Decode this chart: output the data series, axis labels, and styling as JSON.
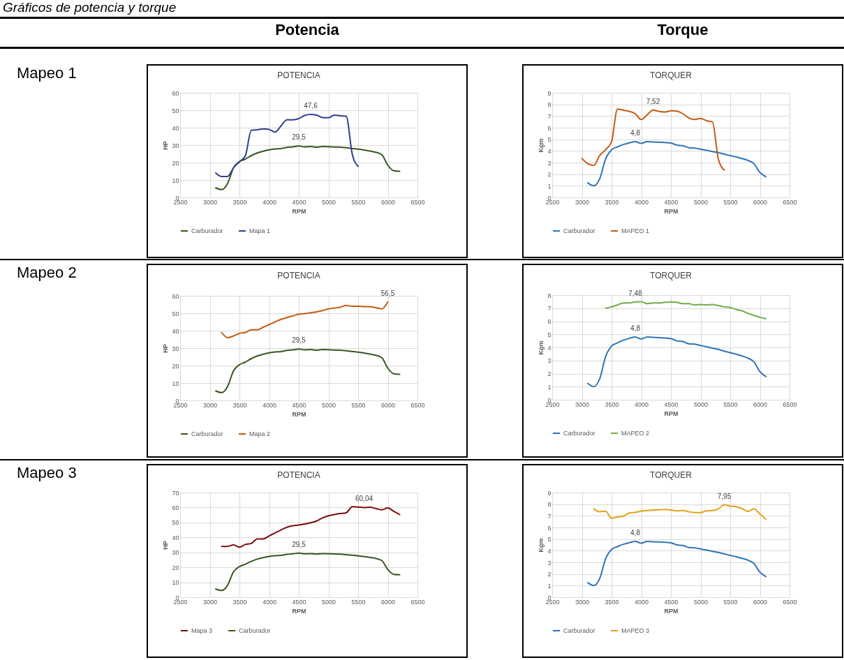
{
  "chart_data": [
    {
      "type": "line",
      "title": "POTENCIA",
      "xlabel": "RPM",
      "ylabel": "HP",
      "xlim": [
        2500,
        6500
      ],
      "xticks": [
        2500,
        3000,
        3500,
        4000,
        4500,
        5000,
        5500,
        6000,
        6500
      ],
      "ylim": [
        0,
        60
      ],
      "yticks": [
        0,
        10,
        20,
        30,
        40,
        50,
        60
      ],
      "grid": true,
      "legend": "bottom",
      "annotations": [
        "Gráficos de potencia y torque",
        "Potencia",
        "Mapeo 1",
        {
          "text": "47,6",
          "x": 4700,
          "y": 47.6
        },
        {
          "text": "29,5",
          "x": 4500,
          "y": 29.5
        }
      ],
      "series": [
        {
          "name": "Carburador",
          "color": "#375623",
          "x": [
            3100,
            3200,
            3300,
            3400,
            3500,
            3600,
            3700,
            3800,
            3900,
            4000,
            4100,
            4200,
            4300,
            4400,
            4500,
            4600,
            4700,
            4800,
            4900,
            5000,
            5100,
            5200,
            5300,
            5400,
            5500,
            5600,
            5700,
            5800,
            5900,
            6000,
            6100,
            6200
          ],
          "values": [
            5.5,
            4.5,
            8,
            17,
            20.5,
            22,
            24,
            25.5,
            26.5,
            27.3,
            27.8,
            28,
            28.7,
            29,
            29.5,
            29,
            29.2,
            28.8,
            29.2,
            29.1,
            28.9,
            28.8,
            28.5,
            28.1,
            27.7,
            27.2,
            26.6,
            25.9,
            24.5,
            18.5,
            15.3,
            15
          ]
        },
        {
          "name": "Mapa 1",
          "color": "#2f3f8f",
          "x": [
            3100,
            3200,
            3300,
            3400,
            3500,
            3600,
            3700,
            3800,
            3900,
            4000,
            4100,
            4200,
            4300,
            4400,
            4500,
            4600,
            4700,
            4800,
            4900,
            5000,
            5100,
            5200,
            5300,
            5400,
            5500
          ],
          "values": [
            14,
            12,
            12,
            17,
            20.5,
            24,
            38.5,
            38.8,
            39.3,
            39,
            37.5,
            41,
            44.5,
            44.5,
            45.2,
            47,
            47.6,
            47.2,
            45.8,
            45.7,
            47.2,
            46.8,
            46.5,
            25,
            17.8
          ]
        }
      ]
    },
    {
      "type": "line",
      "title": "TORQUER",
      "xlabel": "RPM",
      "ylabel": "Kgm",
      "xlim": [
        2500,
        6500
      ],
      "xticks": [
        2500,
        3000,
        3500,
        4000,
        4500,
        5000,
        5500,
        6000,
        6500
      ],
      "ylim": [
        0,
        9
      ],
      "yticks": [
        0,
        1,
        2,
        3,
        4,
        5,
        6,
        7,
        8,
        9
      ],
      "grid": true,
      "legend": "bottom",
      "annotations": [
        "Torque",
        {
          "text": "7,52",
          "x": 4200,
          "y": 7.52
        },
        {
          "text": "4,8",
          "x": 3900,
          "y": 4.8
        }
      ],
      "series": [
        {
          "name": "Carburador",
          "color": "#2e75b6",
          "x": [
            3100,
            3200,
            3300,
            3400,
            3500,
            3600,
            3700,
            3800,
            3900,
            4000,
            4100,
            4200,
            4300,
            4400,
            4500,
            4600,
            4700,
            4800,
            4900,
            5000,
            5100,
            5200,
            5300,
            5400,
            5500,
            5600,
            5700,
            5800,
            5900,
            6000,
            6100
          ],
          "values": [
            1.25,
            1.0,
            1.6,
            3.3,
            4.1,
            4.35,
            4.55,
            4.7,
            4.8,
            4.65,
            4.8,
            4.77,
            4.75,
            4.72,
            4.68,
            4.5,
            4.45,
            4.28,
            4.25,
            4.15,
            4.05,
            3.95,
            3.85,
            3.72,
            3.6,
            3.48,
            3.35,
            3.18,
            2.9,
            2.15,
            1.78
          ]
        },
        {
          "name": "MAPEO 1",
          "color": "#c55a11",
          "x": [
            3000,
            3100,
            3200,
            3300,
            3400,
            3500,
            3600,
            3700,
            3800,
            3900,
            4000,
            4100,
            4200,
            4300,
            4400,
            4500,
            4600,
            4700,
            4800,
            4900,
            5000,
            5100,
            5200,
            5300,
            5400
          ],
          "values": [
            3.35,
            2.9,
            2.75,
            3.6,
            4.1,
            4.8,
            7.6,
            7.5,
            7.4,
            7.2,
            6.7,
            7.1,
            7.52,
            7.4,
            7.35,
            7.45,
            7.42,
            7.2,
            6.85,
            6.7,
            6.8,
            6.6,
            6.5,
            3.3,
            2.35
          ]
        }
      ]
    },
    {
      "type": "line",
      "title": "POTENCIA",
      "xlabel": "RPM",
      "ylabel": "HP",
      "xlim": [
        2500,
        6500
      ],
      "xticks": [
        2500,
        3000,
        3500,
        4000,
        4500,
        5000,
        5500,
        6000,
        6500
      ],
      "ylim": [
        0,
        60
      ],
      "yticks": [
        0,
        10,
        20,
        30,
        40,
        50,
        60
      ],
      "grid": true,
      "legend": "bottom",
      "annotations": [
        "Mapeo 2",
        {
          "text": "56,5",
          "x": 6000,
          "y": 56.5
        },
        {
          "text": "29,5",
          "x": 4500,
          "y": 29.5
        }
      ],
      "series": [
        {
          "name": "Carburador",
          "color": "#375623",
          "x": [
            3100,
            3200,
            3300,
            3400,
            3500,
            3600,
            3700,
            3800,
            3900,
            4000,
            4100,
            4200,
            4300,
            4400,
            4500,
            4600,
            4700,
            4800,
            4900,
            5000,
            5100,
            5200,
            5300,
            5400,
            5500,
            5600,
            5700,
            5800,
            5900,
            6000,
            6100,
            6200
          ],
          "values": [
            5.5,
            4.5,
            8,
            17,
            20.5,
            22,
            24,
            25.5,
            26.5,
            27.3,
            27.8,
            28,
            28.7,
            29,
            29.5,
            29,
            29.2,
            28.8,
            29.2,
            29.1,
            28.9,
            28.8,
            28.5,
            28.1,
            27.7,
            27.2,
            26.6,
            25.9,
            24.5,
            18.5,
            15.3,
            15
          ]
        },
        {
          "name": "Mapa 2",
          "color": "#c55a11",
          "x": [
            3200,
            3300,
            3400,
            3500,
            3600,
            3700,
            3800,
            3900,
            4000,
            4100,
            4200,
            4300,
            4400,
            4500,
            4600,
            4700,
            4800,
            4900,
            5000,
            5100,
            5200,
            5300,
            5400,
            5500,
            5600,
            5700,
            5800,
            5900,
            6000
          ],
          "values": [
            39,
            36,
            37,
            38.5,
            39,
            40.5,
            40.5,
            42,
            43.5,
            45,
            46.5,
            47.5,
            48.5,
            49.5,
            49.8,
            50.3,
            50.8,
            51.5,
            52.5,
            53,
            53.5,
            54.5,
            54,
            54,
            53.8,
            53.7,
            53.2,
            52.5,
            56.5
          ]
        }
      ]
    },
    {
      "type": "line",
      "title": "TORQUER",
      "xlabel": "RPM",
      "ylabel": "Kgm",
      "xlim": [
        2500,
        6500
      ],
      "xticks": [
        2500,
        3000,
        3500,
        4000,
        4500,
        5000,
        5500,
        6000,
        6500
      ],
      "ylim": [
        0,
        8
      ],
      "yticks": [
        0,
        1,
        2,
        3,
        4,
        5,
        6,
        7,
        8
      ],
      "grid": true,
      "legend": "bottom",
      "annotations": [
        {
          "text": "7,48",
          "x": 3900,
          "y": 7.48
        },
        {
          "text": "4,8",
          "x": 3900,
          "y": 4.8
        }
      ],
      "series": [
        {
          "name": "Carburador",
          "color": "#2e75b6",
          "x": [
            3100,
            3200,
            3300,
            3400,
            3500,
            3600,
            3700,
            3800,
            3900,
            4000,
            4100,
            4200,
            4300,
            4400,
            4500,
            4600,
            4700,
            4800,
            4900,
            5000,
            5100,
            5200,
            5300,
            5400,
            5500,
            5600,
            5700,
            5800,
            5900,
            6000,
            6100
          ],
          "values": [
            1.25,
            1.0,
            1.6,
            3.3,
            4.1,
            4.35,
            4.55,
            4.7,
            4.8,
            4.65,
            4.8,
            4.77,
            4.75,
            4.72,
            4.68,
            4.5,
            4.45,
            4.28,
            4.25,
            4.15,
            4.05,
            3.95,
            3.85,
            3.72,
            3.6,
            3.48,
            3.35,
            3.18,
            2.9,
            2.15,
            1.78
          ]
        },
        {
          "name": "MAPEO 2",
          "color": "#70ad47",
          "x": [
            3400,
            3500,
            3600,
            3700,
            3800,
            3900,
            4000,
            4100,
            4200,
            4300,
            4400,
            4500,
            4600,
            4700,
            4800,
            4900,
            5000,
            5100,
            5200,
            5300,
            5400,
            5500,
            5600,
            5700,
            5800,
            5900,
            6000,
            6100
          ],
          "values": [
            7.0,
            7.1,
            7.25,
            7.4,
            7.4,
            7.48,
            7.5,
            7.35,
            7.4,
            7.4,
            7.45,
            7.48,
            7.45,
            7.35,
            7.35,
            7.25,
            7.28,
            7.25,
            7.28,
            7.2,
            7.1,
            7.05,
            6.9,
            6.8,
            6.6,
            6.45,
            6.3,
            6.2
          ]
        }
      ]
    },
    {
      "type": "line",
      "title": "POTENCIA",
      "xlabel": "RPM",
      "ylabel": "HP",
      "xlim": [
        2500,
        6500
      ],
      "xticks": [
        2500,
        3000,
        3500,
        4000,
        4500,
        5000,
        5500,
        6000,
        6500
      ],
      "ylim": [
        0,
        70
      ],
      "yticks": [
        0,
        10,
        20,
        30,
        40,
        50,
        60,
        70
      ],
      "grid": true,
      "legend": "bottom",
      "annotations": [
        "Mapeo 3",
        {
          "text": "60,04",
          "x": 5600,
          "y": 60.04
        },
        {
          "text": "29,5",
          "x": 4500,
          "y": 29.5
        }
      ],
      "series": [
        {
          "name": "Mapa 3",
          "color": "#7b0c0c",
          "x": [
            3200,
            3300,
            3400,
            3500,
            3600,
            3700,
            3800,
            3900,
            4000,
            4100,
            4200,
            4300,
            4400,
            4500,
            4600,
            4700,
            4800,
            4900,
            5000,
            5100,
            5200,
            5300,
            5400,
            5500,
            5600,
            5700,
            5800,
            5900,
            6000,
            6100,
            6200
          ],
          "values": [
            34,
            34,
            35,
            33.5,
            35.3,
            36,
            39,
            39,
            41,
            43,
            45,
            46.8,
            47.8,
            48.3,
            49,
            49.8,
            51,
            53,
            54.5,
            55.3,
            56,
            56.5,
            60.5,
            60.3,
            60,
            60.2,
            59.3,
            58.5,
            59.7,
            57.5,
            55.3
          ]
        },
        {
          "name": "Carburador",
          "color": "#375623",
          "x": [
            3100,
            3200,
            3300,
            3400,
            3500,
            3600,
            3700,
            3800,
            3900,
            4000,
            4100,
            4200,
            4300,
            4400,
            4500,
            4600,
            4700,
            4800,
            4900,
            5000,
            5100,
            5200,
            5300,
            5400,
            5500,
            5600,
            5700,
            5800,
            5900,
            6000,
            6100,
            6200
          ],
          "values": [
            5.5,
            4.5,
            8,
            17,
            20.5,
            22,
            24,
            25.5,
            26.5,
            27.3,
            27.8,
            28,
            28.7,
            29,
            29.5,
            29,
            29.2,
            28.8,
            29.2,
            29.1,
            28.9,
            28.8,
            28.5,
            28.1,
            27.7,
            27.2,
            26.6,
            25.9,
            24.5,
            18.5,
            15.3,
            15
          ]
        }
      ]
    },
    {
      "type": "line",
      "title": "TORQUER",
      "xlabel": "RPM",
      "ylabel": "Kgm",
      "xlim": [
        2500,
        6500
      ],
      "xticks": [
        2500,
        3000,
        3500,
        4000,
        4500,
        5000,
        5500,
        6000,
        6500
      ],
      "ylim": [
        0,
        9
      ],
      "yticks": [
        0,
        1,
        2,
        3,
        4,
        5,
        6,
        7,
        8,
        9
      ],
      "grid": true,
      "legend": "bottom",
      "annotations": [
        {
          "text": "7,95",
          "x": 5400,
          "y": 7.95
        },
        {
          "text": "4,8",
          "x": 3900,
          "y": 4.8
        }
      ],
      "series": [
        {
          "name": "Carburador",
          "color": "#2e75b6",
          "x": [
            3100,
            3200,
            3300,
            3400,
            3500,
            3600,
            3700,
            3800,
            3900,
            4000,
            4100,
            4200,
            4300,
            4400,
            4500,
            4600,
            4700,
            4800,
            4900,
            5000,
            5100,
            5200,
            5300,
            5400,
            5500,
            5600,
            5700,
            5800,
            5900,
            6000,
            6100
          ],
          "values": [
            1.25,
            1.0,
            1.6,
            3.3,
            4.1,
            4.35,
            4.55,
            4.7,
            4.8,
            4.65,
            4.8,
            4.77,
            4.75,
            4.72,
            4.68,
            4.5,
            4.45,
            4.28,
            4.25,
            4.15,
            4.05,
            3.95,
            3.85,
            3.72,
            3.6,
            3.48,
            3.35,
            3.18,
            2.9,
            2.15,
            1.78
          ]
        },
        {
          "name": "MAPEO 3",
          "color": "#e3a21a",
          "x": [
            3200,
            3300,
            3400,
            3500,
            3600,
            3700,
            3800,
            3900,
            4000,
            4100,
            4200,
            4300,
            4400,
            4500,
            4600,
            4700,
            4800,
            4900,
            5000,
            5100,
            5200,
            5300,
            5400,
            5500,
            5600,
            5700,
            5800,
            5900,
            6000,
            6100
          ],
          "values": [
            7.6,
            7.35,
            7.4,
            6.8,
            6.9,
            6.97,
            7.25,
            7.3,
            7.4,
            7.45,
            7.5,
            7.52,
            7.55,
            7.5,
            7.42,
            7.45,
            7.35,
            7.28,
            7.28,
            7.42,
            7.45,
            7.6,
            7.95,
            7.83,
            7.78,
            7.62,
            7.38,
            7.6,
            7.15,
            6.72
          ]
        }
      ]
    }
  ]
}
